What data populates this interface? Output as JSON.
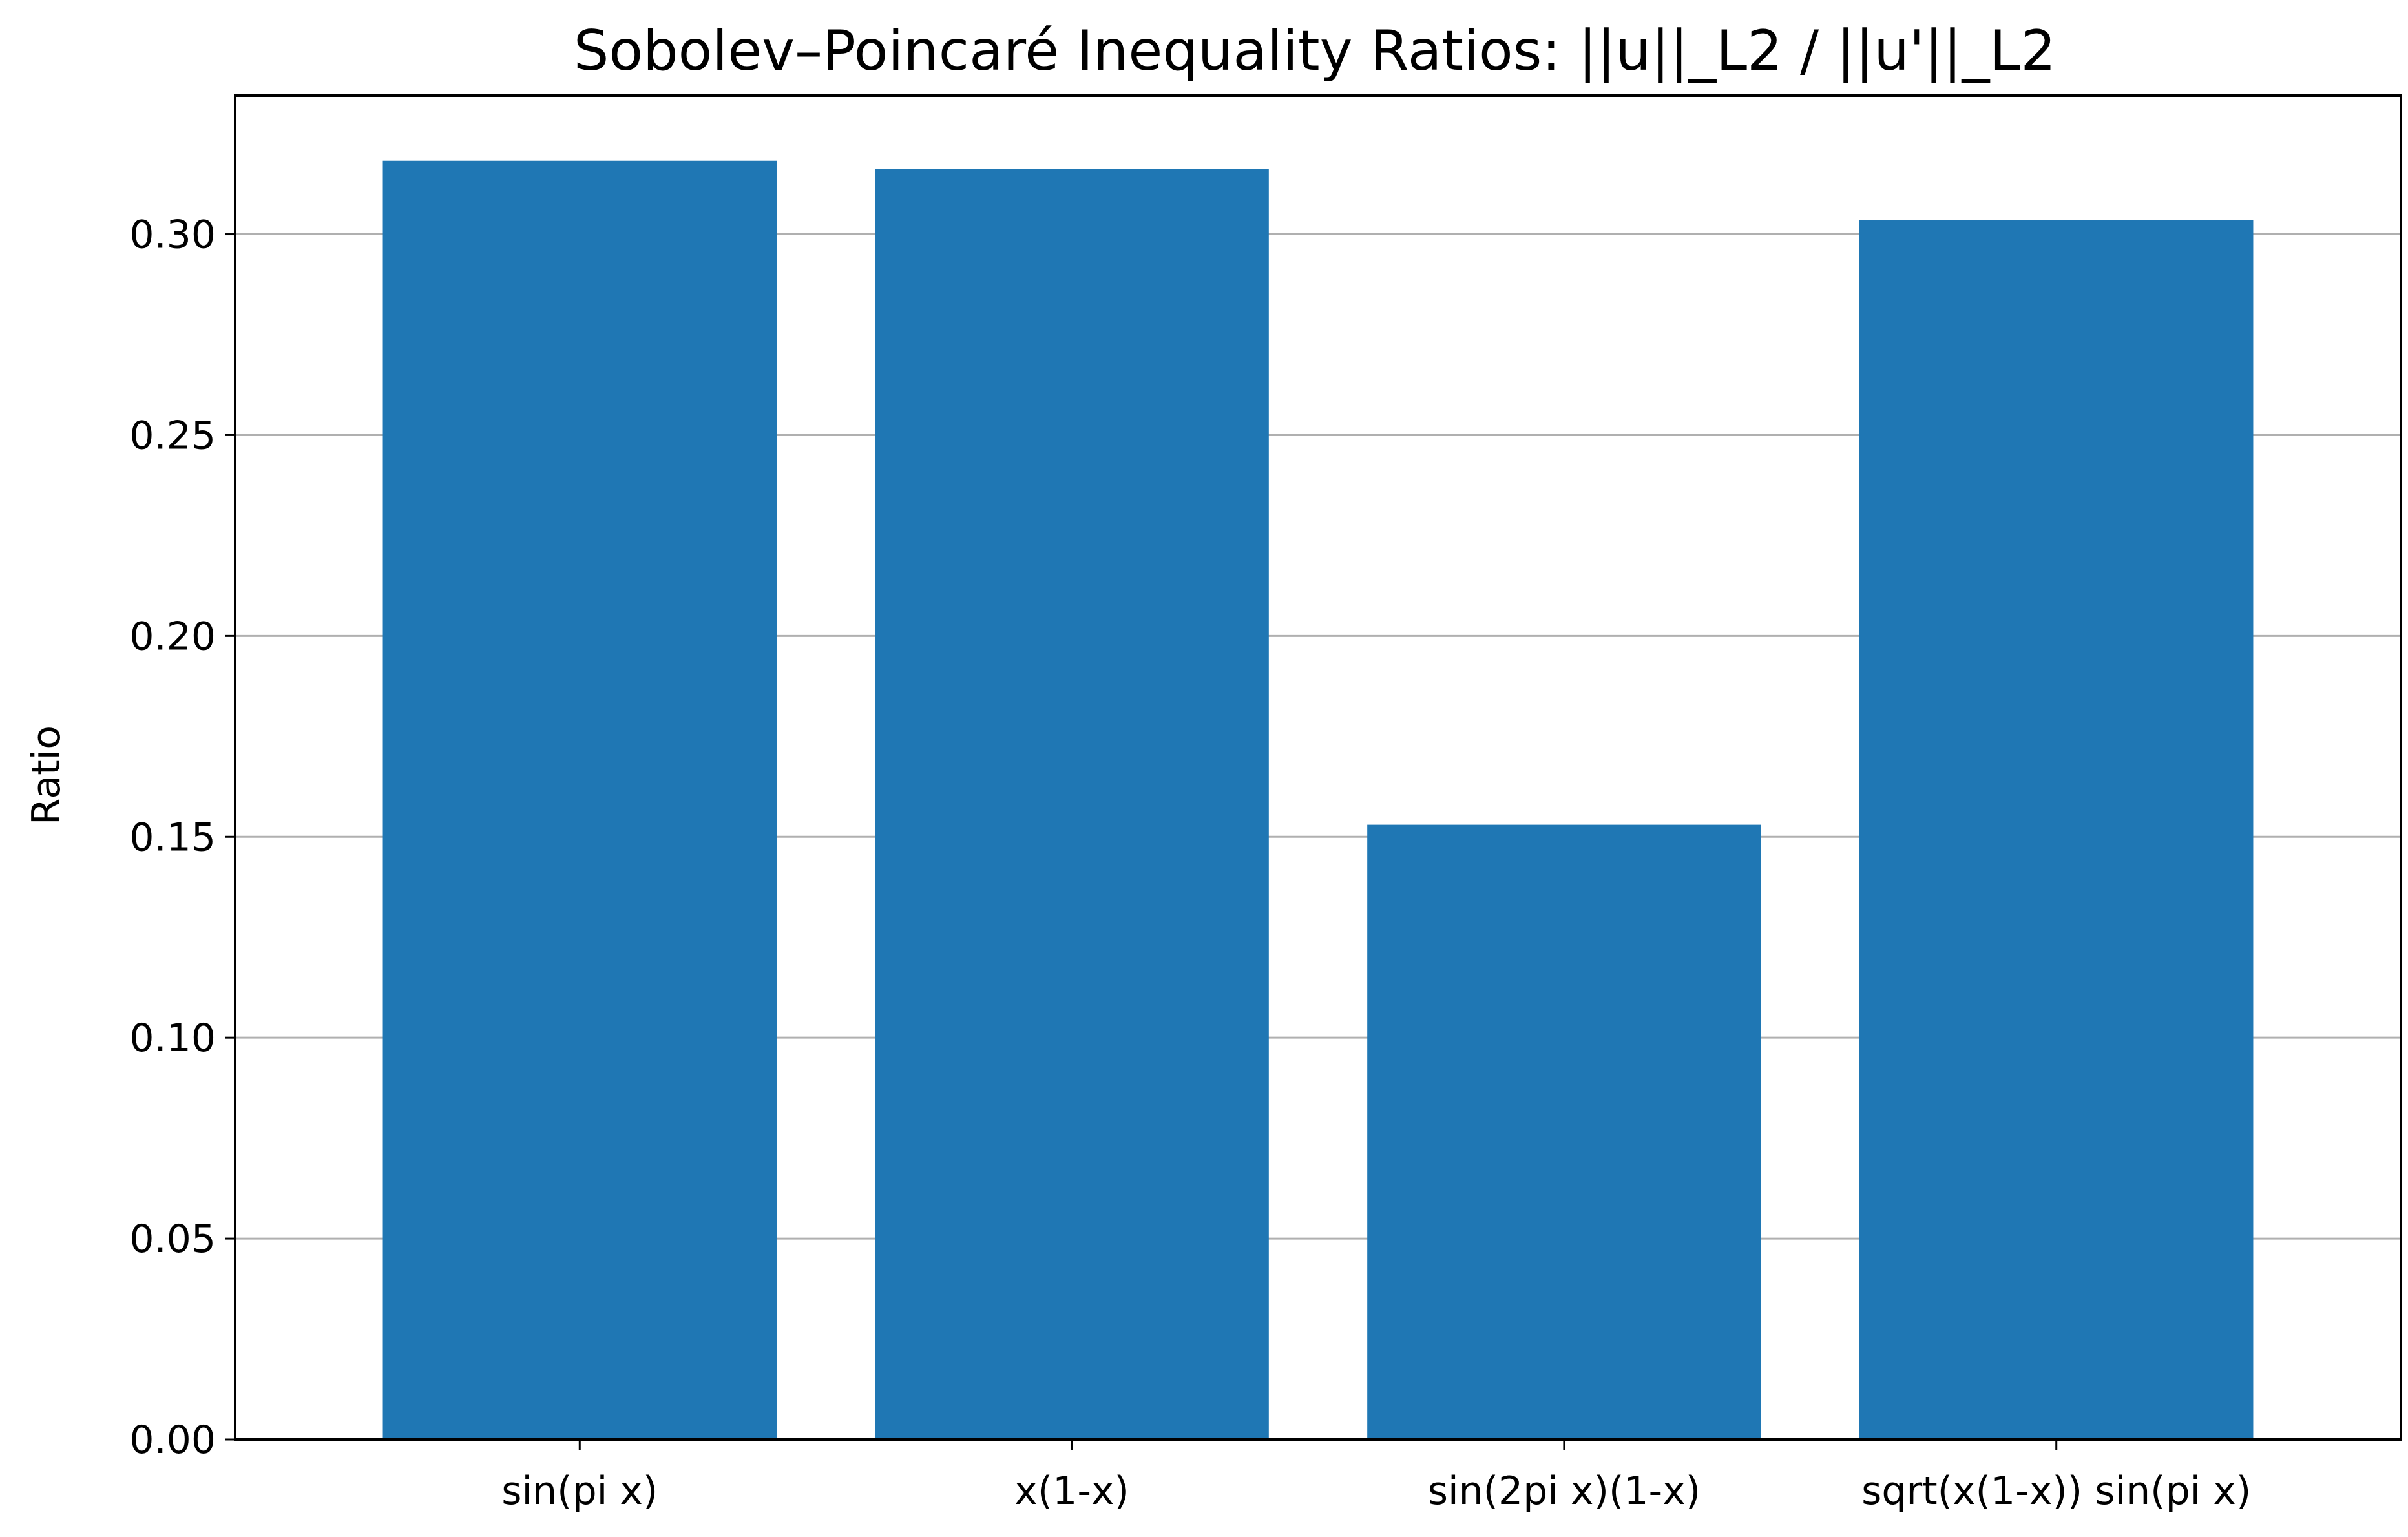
{
  "chart_data": {
    "type": "bar",
    "title": "Sobolev–Poincaré Inequality Ratios: ||u||_L2 / ||u'||_L2",
    "xlabel": "",
    "ylabel": "Ratio",
    "categories": [
      "sin(pi x)",
      "x(1-x)",
      "sin(2pi x)(1-x)",
      "sqrt(x(1-x)) sin(pi x)"
    ],
    "values": [
      0.3183,
      0.3162,
      0.153,
      0.3035
    ],
    "ylim": [
      0,
      0.3345
    ],
    "yticks": [
      0.0,
      0.05,
      0.1,
      0.15,
      0.2,
      0.25,
      0.3
    ],
    "ytick_labels": [
      "0.00",
      "0.05",
      "0.10",
      "0.15",
      "0.20",
      "0.25",
      "0.30"
    ],
    "grid": "horizontal",
    "legend": "none",
    "bar_color": "#1f77b4"
  }
}
